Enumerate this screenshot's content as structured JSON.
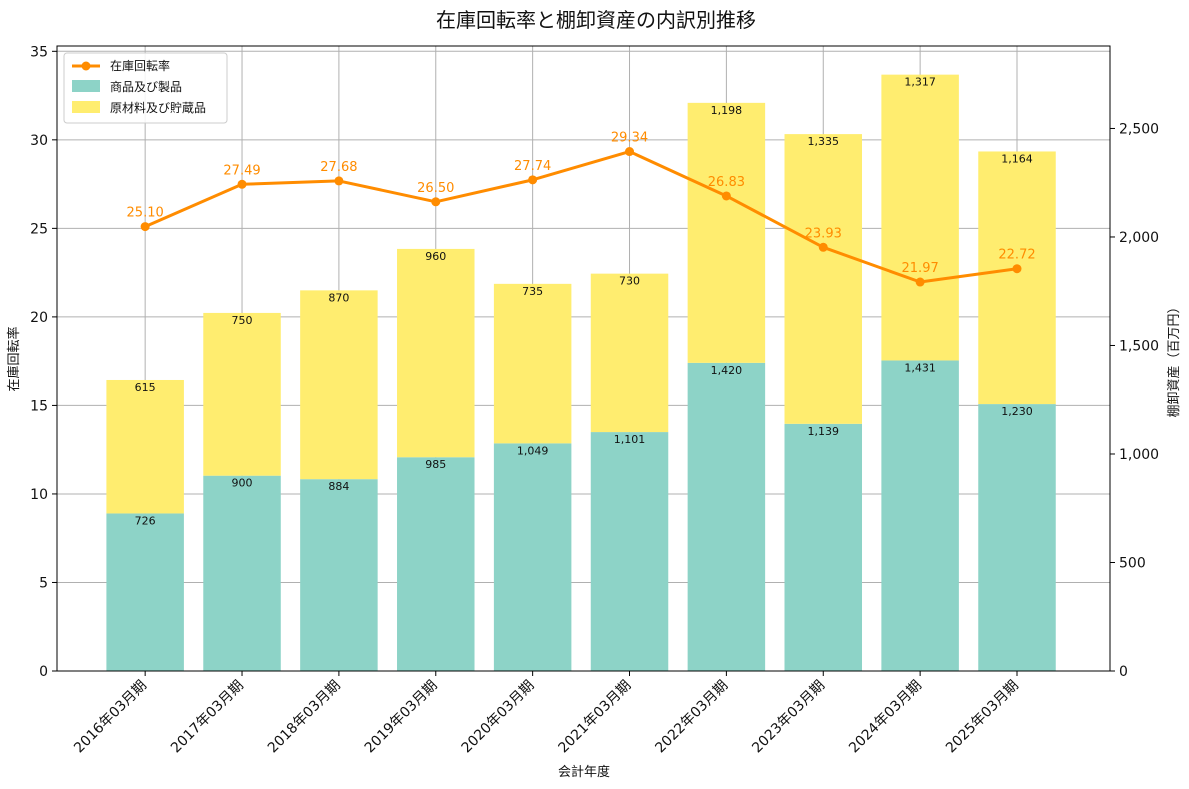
{
  "chart_data": {
    "type": "bar",
    "title": "在庫回転率と棚卸資産の内訳別推移",
    "xlabel": "会計年度",
    "ylabel_left": "在庫回転率",
    "ylabel_right": "棚卸資産（百万円）",
    "categories": [
      "2016年03月期",
      "2017年03月期",
      "2018年03月期",
      "2019年03月期",
      "2020年03月期",
      "2021年03月期",
      "2022年03月期",
      "2023年03月期",
      "2024年03月期",
      "2025年03月期"
    ],
    "series": [
      {
        "name": "商品及び製品",
        "type": "bar",
        "axis": "right",
        "color": "#8dd3c7",
        "values": [
          726,
          900,
          884,
          985,
          1049,
          1101,
          1420,
          1139,
          1431,
          1230
        ],
        "labels": [
          "726",
          "900",
          "884",
          "985",
          "1,049",
          "1,101",
          "1,420",
          "1,139",
          "1,431",
          "1,230"
        ]
      },
      {
        "name": "原材料及び貯蔵品",
        "type": "bar",
        "axis": "right",
        "color": "#ffed6f",
        "values": [
          615,
          750,
          870,
          960,
          735,
          730,
          1198,
          1335,
          1317,
          1164
        ],
        "labels": [
          "615",
          "750",
          "870",
          "960",
          "735",
          "730",
          "1,198",
          "1,335",
          "1,317",
          "1,164"
        ]
      },
      {
        "name": "在庫回転率",
        "type": "line",
        "axis": "left",
        "color": "#ff8c00",
        "values": [
          25.1,
          27.49,
          27.68,
          26.5,
          27.74,
          29.34,
          26.83,
          23.93,
          21.97,
          22.72
        ],
        "labels": [
          "25.10",
          "27.49",
          "27.68",
          "26.50",
          "27.74",
          "29.34",
          "26.83",
          "23.93",
          "21.97",
          "22.72"
        ]
      }
    ],
    "ylim_left": [
      0,
      35.3
    ],
    "ylim_right": [
      0,
      2880
    ],
    "yticks_left": [
      "0",
      "5",
      "10",
      "15",
      "20",
      "25",
      "30",
      "35"
    ],
    "yticks_left_values": [
      0,
      5,
      10,
      15,
      20,
      25,
      30,
      35
    ],
    "yticks_right": [
      "0",
      "500",
      "1,000",
      "1,500",
      "2,000",
      "2,500"
    ],
    "yticks_right_values": [
      0,
      500,
      1000,
      1500,
      2000,
      2500
    ],
    "grid": true,
    "legend_position": "top-left"
  }
}
